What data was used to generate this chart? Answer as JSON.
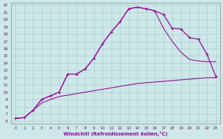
{
  "xlabel": "Windchill (Refroidissement éolien,°C)",
  "bg_color": "#cce8e8",
  "grid_color": "#aacccc",
  "line_color": "#990099",
  "xmin": 0,
  "xmax": 23,
  "ymin": 6,
  "ymax": 22,
  "line1_x": [
    0,
    1,
    2,
    3,
    4,
    5,
    6,
    7,
    8,
    9,
    10,
    11,
    12,
    13,
    14,
    15,
    16,
    17,
    18,
    19,
    20,
    21,
    22,
    23
  ],
  "line1_y": [
    6.4,
    6.5,
    7.5,
    9.0,
    9.5,
    10.0,
    12.5,
    12.5,
    13.2,
    14.7,
    16.7,
    18.3,
    19.7,
    21.5,
    21.7,
    21.5,
    21.2,
    20.7,
    18.8,
    18.7,
    17.5,
    17.3,
    15.2,
    12.2
  ],
  "line2_x": [
    0,
    1,
    2,
    3,
    4,
    5,
    6,
    7,
    8,
    9,
    10,
    11,
    12,
    13,
    14,
    15,
    16,
    17,
    18,
    19,
    20,
    21,
    22,
    23
  ],
  "line2_y": [
    6.4,
    6.5,
    7.5,
    9.0,
    9.5,
    10.0,
    12.5,
    12.5,
    13.2,
    14.7,
    16.7,
    18.3,
    19.7,
    21.5,
    21.7,
    21.5,
    21.2,
    18.8,
    17.0,
    15.5,
    14.5,
    14.3,
    14.2,
    14.2
  ],
  "line3_x": [
    0,
    1,
    2,
    3,
    4,
    5,
    6,
    7,
    8,
    9,
    10,
    11,
    12,
    13,
    14,
    15,
    16,
    17,
    18,
    19,
    20,
    21,
    22,
    23
  ],
  "line3_y": [
    6.4,
    6.5,
    7.5,
    8.5,
    9.0,
    9.4,
    9.6,
    9.8,
    10.0,
    10.2,
    10.4,
    10.6,
    10.8,
    11.0,
    11.2,
    11.3,
    11.4,
    11.5,
    11.6,
    11.7,
    11.8,
    11.9,
    12.0,
    12.0
  ]
}
